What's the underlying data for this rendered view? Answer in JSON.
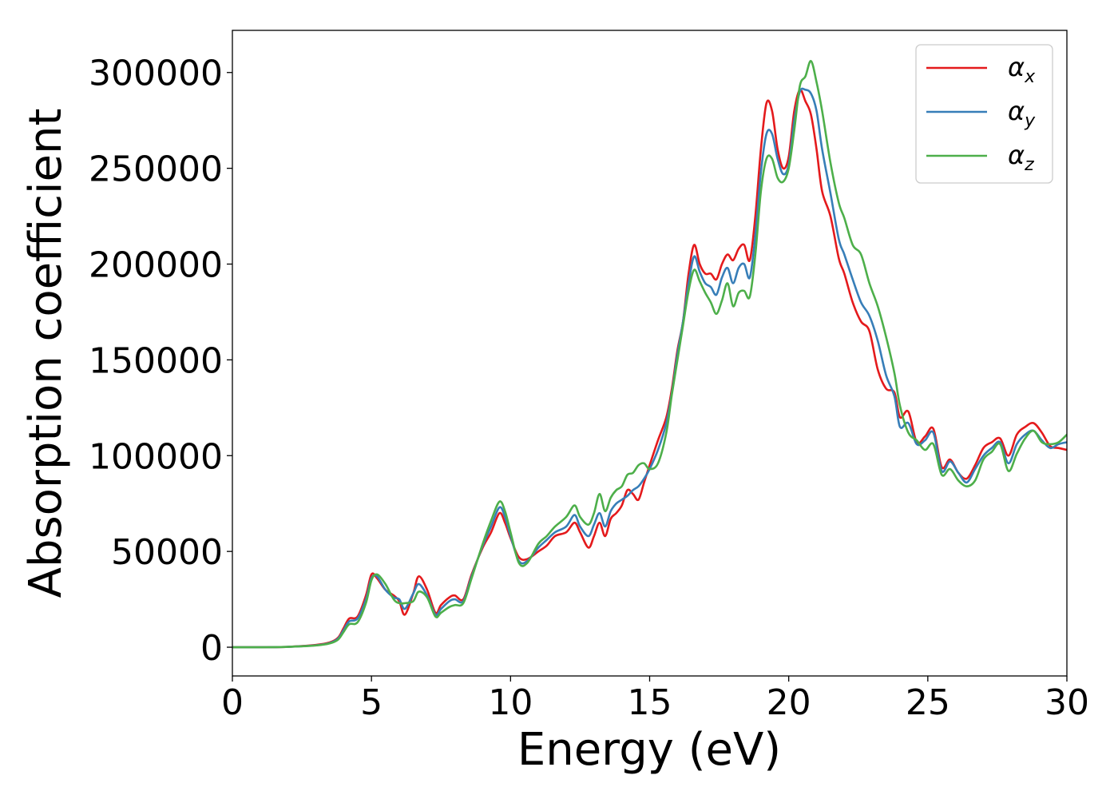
{
  "chart_data": {
    "type": "line",
    "title": "",
    "xlabel": "Energy (eV)",
    "ylabel": "Absorption coefficient",
    "xlim": [
      0,
      30
    ],
    "ylim": [
      -15000,
      322000
    ],
    "xticks": [
      0,
      5,
      10,
      15,
      20,
      25,
      30
    ],
    "yticks": [
      0,
      50000,
      100000,
      150000,
      200000,
      250000,
      300000
    ],
    "grid": false,
    "legend_position": "top-right",
    "x": [
      0,
      1,
      2,
      3,
      3.5,
      3.8,
      4.0,
      4.2,
      4.5,
      4.8,
      5.0,
      5.2,
      5.5,
      5.8,
      6.0,
      6.2,
      6.5,
      6.7,
      7.0,
      7.3,
      7.5,
      7.8,
      8.0,
      8.3,
      8.6,
      9.0,
      9.3,
      9.6,
      9.8,
      10.0,
      10.3,
      10.6,
      11.0,
      11.3,
      11.6,
      12.0,
      12.3,
      12.5,
      12.8,
      13.0,
      13.2,
      13.4,
      13.6,
      13.8,
      14.0,
      14.2,
      14.4,
      14.6,
      14.8,
      15.0,
      15.3,
      15.6,
      15.8,
      16.0,
      16.2,
      16.4,
      16.6,
      16.8,
      17.0,
      17.2,
      17.4,
      17.6,
      17.8,
      18.0,
      18.2,
      18.4,
      18.6,
      18.8,
      19.0,
      19.2,
      19.4,
      19.6,
      19.8,
      20.0,
      20.2,
      20.4,
      20.6,
      20.8,
      21.0,
      21.2,
      21.5,
      21.8,
      22.0,
      22.3,
      22.6,
      22.9,
      23.2,
      23.5,
      23.8,
      24.0,
      24.3,
      24.6,
      24.9,
      25.2,
      25.5,
      25.8,
      26.1,
      26.4,
      26.7,
      27.0,
      27.3,
      27.6,
      27.9,
      28.2,
      28.5,
      28.8,
      29.1,
      29.4,
      29.7,
      30.0
    ],
    "series": [
      {
        "name": "αx",
        "label_base": "α",
        "label_sub": "x",
        "color": "#e41a1c",
        "values": [
          0,
          0,
          200,
          1200,
          2500,
          5000,
          10000,
          15000,
          16000,
          27000,
          38000,
          36000,
          30000,
          27000,
          24000,
          17000,
          28000,
          37000,
          30000,
          18000,
          22000,
          26000,
          27000,
          25000,
          38000,
          52000,
          60000,
          70000,
          65000,
          57000,
          47000,
          46000,
          50000,
          53000,
          58000,
          60000,
          65000,
          60000,
          52000,
          58000,
          65000,
          58000,
          67000,
          70000,
          74000,
          82000,
          80000,
          77000,
          86000,
          95000,
          108000,
          120000,
          135000,
          155000,
          170000,
          195000,
          210000,
          200000,
          195000,
          195000,
          192000,
          200000,
          205000,
          202000,
          208000,
          210000,
          202000,
          225000,
          260000,
          284000,
          280000,
          260000,
          250000,
          256000,
          280000,
          291000,
          285000,
          278000,
          260000,
          238000,
          225000,
          203000,
          195000,
          180000,
          170000,
          165000,
          145000,
          135000,
          133000,
          120000,
          123000,
          107000,
          110000,
          114000,
          94000,
          98000,
          91000,
          88000,
          95000,
          104000,
          107000,
          109000,
          100000,
          111000,
          115000,
          117000,
          112000,
          105000,
          104000,
          103000
        ]
      },
      {
        "name": "αy",
        "label_base": "α",
        "label_sub": "y",
        "color": "#377eb8",
        "values": [
          0,
          0,
          200,
          1000,
          2200,
          4500,
          9000,
          13500,
          15000,
          25000,
          36000,
          37000,
          30000,
          26000,
          25000,
          20000,
          28000,
          33000,
          27000,
          17000,
          20000,
          24000,
          25000,
          24000,
          37000,
          53000,
          63000,
          73000,
          68000,
          58000,
          45000,
          45000,
          52000,
          56000,
          60000,
          63000,
          69000,
          63000,
          58000,
          64000,
          70000,
          63000,
          71000,
          75000,
          77000,
          79000,
          82000,
          84000,
          88000,
          93000,
          103000,
          117000,
          133000,
          153000,
          170000,
          190000,
          204000,
          196000,
          190000,
          188000,
          184000,
          193000,
          198000,
          190000,
          198000,
          200000,
          193000,
          215000,
          248000,
          268000,
          268000,
          255000,
          247000,
          252000,
          275000,
          290000,
          291000,
          289000,
          280000,
          260000,
          237000,
          213000,
          205000,
          192000,
          180000,
          173000,
          160000,
          142000,
          131000,
          115000,
          117000,
          106000,
          108000,
          112000,
          92000,
          97000,
          91000,
          86000,
          93000,
          100000,
          104000,
          107000,
          96000,
          106000,
          111000,
          113000,
          108000,
          104000,
          106000,
          107000
        ]
      },
      {
        "name": "αz",
        "label_base": "α",
        "label_sub": "z",
        "color": "#4daf4a",
        "values": [
          0,
          0,
          200,
          900,
          2000,
          4000,
          8000,
          12000,
          13000,
          23000,
          35000,
          38000,
          33000,
          25000,
          23000,
          23000,
          24000,
          29000,
          26000,
          16000,
          18000,
          21000,
          22000,
          23000,
          36000,
          54000,
          66000,
          76000,
          71000,
          60000,
          44000,
          44000,
          54000,
          58000,
          63000,
          68000,
          74000,
          68000,
          64000,
          70000,
          80000,
          71000,
          78000,
          82000,
          84000,
          90000,
          91000,
          95000,
          96000,
          93000,
          96000,
          112000,
          132000,
          150000,
          168000,
          186000,
          197000,
          191000,
          185000,
          180000,
          174000,
          181000,
          190000,
          178000,
          185000,
          186000,
          183000,
          205000,
          238000,
          255000,
          255000,
          245000,
          243000,
          250000,
          270000,
          293000,
          298000,
          306000,
          295000,
          280000,
          253000,
          232000,
          224000,
          210000,
          205000,
          190000,
          178000,
          162000,
          143000,
          126000,
          112000,
          108000,
          103000,
          106000,
          90000,
          93000,
          87000,
          84000,
          87000,
          98000,
          102000,
          106000,
          92000,
          101000,
          109000,
          113000,
          107000,
          106000,
          107000,
          111000
        ]
      }
    ]
  }
}
